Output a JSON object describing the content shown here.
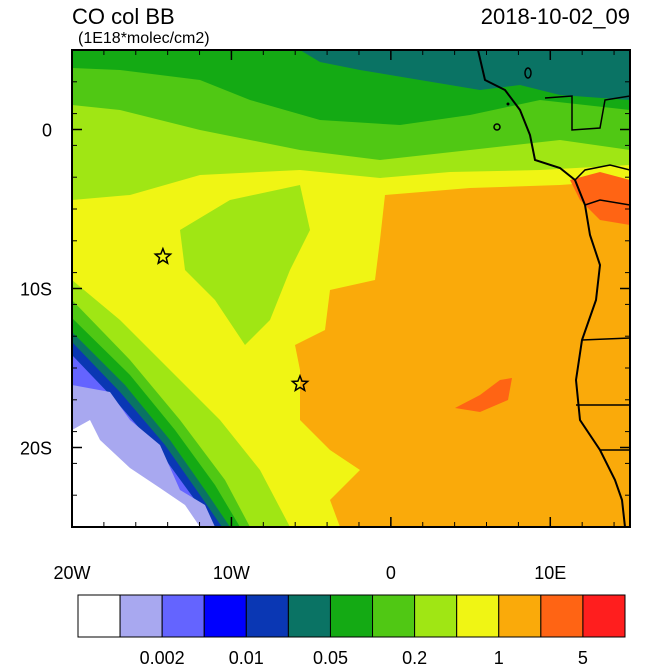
{
  "map": {
    "title": "CO col BB",
    "subtitle": "(1E18*molec/cm2)",
    "date": "2018-10-02_09",
    "xlim": [
      -20,
      15
    ],
    "ylim": [
      -25,
      5
    ],
    "xticks": [
      {
        "value": -20,
        "label": "20W"
      },
      {
        "value": -10,
        "label": "10W"
      },
      0,
      {
        "value": 10,
        "label": "10E"
      }
    ],
    "yticks": [
      0,
      {
        "value": -10,
        "label": "10S"
      },
      {
        "value": -20,
        "label": "20S"
      }
    ],
    "markers": [
      {
        "lon": -14.3,
        "lat": -8
      },
      {
        "lon": -5.7,
        "lat": -16
      }
    ],
    "colorbar": {
      "colors": [
        "#ffffff",
        "#a8a8f0",
        "#6464ff",
        "#0000ff",
        "#0a37b4",
        "#0a7364",
        "#14aa14",
        "#50c814",
        "#a0e614",
        "#f0f514",
        "#faaa0a",
        "#ff6414",
        "#ff1e1e"
      ],
      "labels": [
        {
          "value": 0.002,
          "label": "0.002"
        },
        {
          "value": 0.01,
          "label": "0.01"
        },
        {
          "value": 0.05,
          "label": "0.05"
        },
        {
          "value": 0.2,
          "label": "0.2"
        },
        1,
        5
      ]
    }
  }
}
